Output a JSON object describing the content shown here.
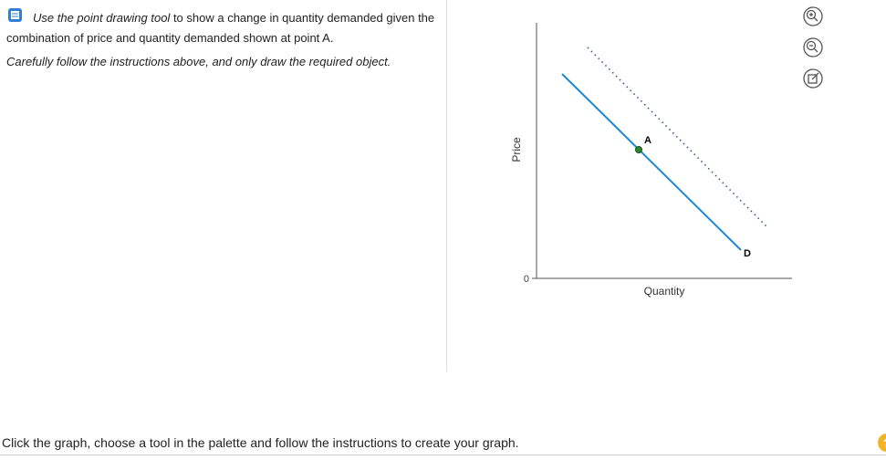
{
  "instruction": {
    "lead": "Use the point drawing tool",
    "rest": "to show a change in quantity demanded given the combination of price and quantity demanded shown at point A."
  },
  "note": "Carefully follow the instructions above, and only draw the required object.",
  "graph": {
    "y_axis_label": "Price",
    "x_axis_label": "Quantity",
    "origin_label": "0",
    "point_label": "A",
    "curve_label": "D"
  },
  "footer": "Click the graph, choose a tool in the palette and follow the instructions to create your graph.",
  "help": "?"
}
